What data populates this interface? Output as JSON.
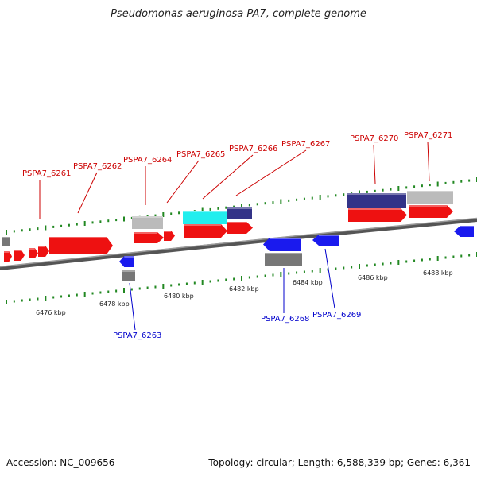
{
  "title": "Pseudomonas aeruginosa PA7, complete genome",
  "footer": {
    "accession": "Accession: NC_009656",
    "stats": "Topology: circular; Length: 6,588,339 bp; Genes: 6,361"
  },
  "colors": {
    "forward_gene": "#ee1111",
    "reverse_gene": "#1a1aee",
    "gray_feature": "#777777",
    "light_gray_feature": "#bbbbbb",
    "cyan_feature": "#22eeee",
    "navy_feature": "#333388",
    "tick": "#228822",
    "forward_label": "#cc0000",
    "reverse_label": "#0000cc"
  },
  "scale_labels": [
    "6476 kbp",
    "6478 kbp",
    "6480 kbp",
    "6482 kbp",
    "6484 kbp",
    "6486 kbp",
    "6488 kbp"
  ],
  "forward_labels": [
    "PSPA7_6261",
    "PSPA7_6262",
    "PSPA7_6264",
    "PSPA7_6265",
    "PSPA7_6266",
    "PSPA7_6267",
    "PSPA7_6270",
    "PSPA7_6271"
  ],
  "reverse_labels": [
    "PSPA7_6263",
    "PSPA7_6268",
    "PSPA7_6269"
  ]
}
